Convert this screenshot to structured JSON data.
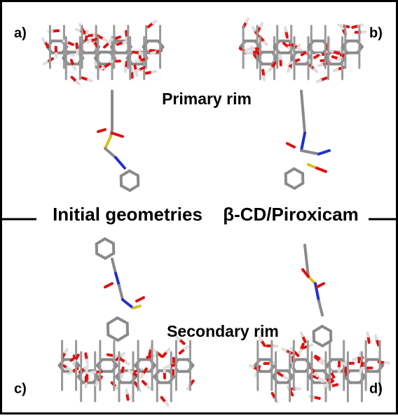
{
  "panels": {
    "a": "a)",
    "b": "b)",
    "c": "c)",
    "d": "d)"
  },
  "labels": {
    "primary": "Primary rim",
    "secondary": "Secondary rim"
  },
  "caption": {
    "left": "Initial geometries",
    "right": "β-CD/Piroxicam"
  }
}
